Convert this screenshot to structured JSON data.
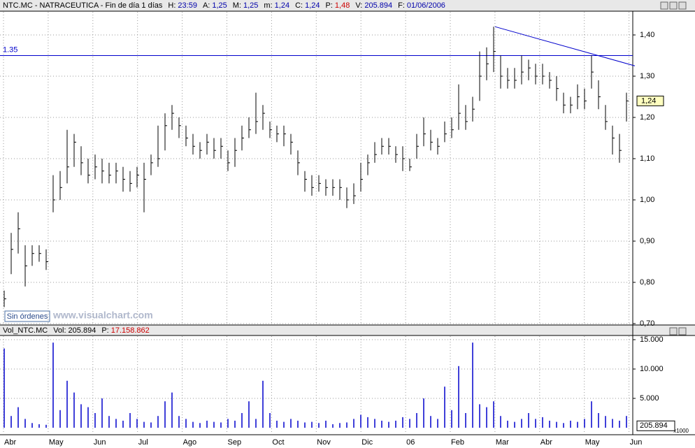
{
  "header": {
    "symbol": "NTC.MC - NATRACEUTICA - Fin de día 1 días",
    "items": [
      {
        "label": "H:",
        "value": "23:59"
      },
      {
        "label": "A:",
        "value": "1,25"
      },
      {
        "label": "M:",
        "value": "1,25"
      },
      {
        "label": "m:",
        "value": "1,24"
      },
      {
        "label": "C:",
        "value": "1,24"
      },
      {
        "label": "P:",
        "value": "1,48"
      },
      {
        "label": "V:",
        "value": "205.894"
      },
      {
        "label": "F:",
        "value": "01/06/2006"
      }
    ]
  },
  "volume_header": {
    "name": "Vol_NTC.MC",
    "items": [
      {
        "label": "Vol:",
        "value": "205.894"
      },
      {
        "label": "P:",
        "value": "17.158.862"
      }
    ]
  },
  "button": "Sin órdenes",
  "watermark": "www.visualchart.com",
  "volume_multiplier": "x1000",
  "chart_data": [
    {
      "type": "ohlc",
      "title": "NTC.MC",
      "ylim": [
        0.7,
        1.45
      ],
      "yticks": [
        {
          "value": 0.7,
          "label": "0,70"
        },
        {
          "value": 0.8,
          "label": "0,80"
        },
        {
          "value": 0.9,
          "label": "0,90"
        },
        {
          "value": 1.0,
          "label": "1,00"
        },
        {
          "value": 1.1,
          "label": "1,10"
        },
        {
          "value": 1.2,
          "label": "1,20"
        },
        {
          "value": 1.3,
          "label": "1,30"
        },
        {
          "value": 1.4,
          "label": "1,40"
        }
      ],
      "grid": true,
      "color": "#000000",
      "months": [
        "Abr",
        "May",
        "Jun",
        "Jul",
        "Ago",
        "Sep",
        "Oct",
        "Nov",
        "Dic",
        "06",
        "Feb",
        "Mar",
        "Abr",
        "May",
        "Jun"
      ],
      "highs": [
        0.78,
        0.92,
        0.97,
        0.89,
        0.89,
        0.89,
        0.88,
        1.06,
        1.07,
        1.17,
        1.16,
        1.13,
        1.1,
        1.11,
        1.1,
        1.09,
        1.09,
        1.08,
        1.07,
        1.08,
        1.09,
        1.11,
        1.18,
        1.21,
        1.23,
        1.2,
        1.18,
        1.16,
        1.14,
        1.16,
        1.15,
        1.15,
        1.12,
        1.15,
        1.18,
        1.2,
        1.26,
        1.23,
        1.19,
        1.18,
        1.18,
        1.16,
        1.12,
        1.07,
        1.06,
        1.06,
        1.05,
        1.05,
        1.05,
        1.03,
        1.04,
        1.09,
        1.11,
        1.14,
        1.15,
        1.15,
        1.13,
        1.13,
        1.1,
        1.16,
        1.2,
        1.17,
        1.15,
        1.19,
        1.2,
        1.28,
        1.23,
        1.25,
        1.36,
        1.37,
        1.42,
        1.35,
        1.32,
        1.32,
        1.35,
        1.34,
        1.33,
        1.33,
        1.31,
        1.3,
        1.26,
        1.25,
        1.28,
        1.27,
        1.35,
        1.29,
        1.23,
        1.18,
        1.16,
        1.26
      ],
      "lows": [
        0.74,
        0.82,
        0.87,
        0.79,
        0.84,
        0.85,
        0.83,
        0.97,
        1.0,
        1.04,
        1.08,
        1.06,
        1.04,
        1.05,
        1.04,
        1.04,
        1.04,
        1.02,
        1.02,
        1.03,
        0.97,
        1.06,
        1.08,
        1.12,
        1.17,
        1.15,
        1.13,
        1.11,
        1.1,
        1.11,
        1.1,
        1.1,
        1.07,
        1.08,
        1.12,
        1.15,
        1.16,
        1.17,
        1.15,
        1.14,
        1.13,
        1.11,
        1.06,
        1.02,
        1.01,
        1.02,
        1.01,
        1.01,
        1.0,
        0.98,
        0.99,
        1.02,
        1.06,
        1.09,
        1.11,
        1.11,
        1.09,
        1.07,
        1.07,
        1.1,
        1.13,
        1.12,
        1.11,
        1.14,
        1.15,
        1.17,
        1.17,
        1.19,
        1.24,
        1.29,
        1.31,
        1.27,
        1.27,
        1.27,
        1.28,
        1.29,
        1.28,
        1.28,
        1.27,
        1.24,
        1.21,
        1.21,
        1.22,
        1.22,
        1.27,
        1.22,
        1.17,
        1.11,
        1.09,
        1.19
      ],
      "closes": [
        0.76,
        0.88,
        0.93,
        0.84,
        0.87,
        0.87,
        0.85,
        1.0,
        1.03,
        1.08,
        1.14,
        1.09,
        1.06,
        1.08,
        1.07,
        1.06,
        1.07,
        1.05,
        1.04,
        1.06,
        1.05,
        1.09,
        1.1,
        1.18,
        1.21,
        1.18,
        1.15,
        1.13,
        1.12,
        1.14,
        1.12,
        1.13,
        1.09,
        1.12,
        1.15,
        1.17,
        1.19,
        1.21,
        1.17,
        1.16,
        1.16,
        1.14,
        1.09,
        1.05,
        1.03,
        1.04,
        1.03,
        1.03,
        1.03,
        1.0,
        1.01,
        1.05,
        1.09,
        1.11,
        1.13,
        1.13,
        1.11,
        1.1,
        1.08,
        1.13,
        1.16,
        1.14,
        1.13,
        1.16,
        1.17,
        1.21,
        1.19,
        1.22,
        1.3,
        1.33,
        1.36,
        1.3,
        1.29,
        1.29,
        1.31,
        1.32,
        1.3,
        1.3,
        1.29,
        1.27,
        1.23,
        1.23,
        1.25,
        1.24,
        1.31,
        1.25,
        1.19,
        1.15,
        1.12,
        1.24
      ],
      "hline": {
        "value": 1.35,
        "label": "1.35",
        "color": "#0000cc"
      },
      "trendline": {
        "x": [
          70,
          90
        ],
        "values": [
          1.42,
          1.325
        ],
        "color": "#0000cc"
      },
      "last_price": {
        "value": 1.24,
        "label": "1,24"
      }
    },
    {
      "type": "volume",
      "ylim": [
        0,
        16000
      ],
      "yticks": [
        {
          "value": 5000,
          "label": "5.000"
        },
        {
          "value": 10000,
          "label": "10.000"
        },
        {
          "value": 15000,
          "label": "15.000"
        }
      ],
      "grid": true,
      "color": "#0000cc",
      "values": [
        13500,
        2000,
        3500,
        1500,
        800,
        600,
        500,
        14500,
        3000,
        8000,
        6000,
        4000,
        3500,
        2500,
        5000,
        2000,
        1500,
        1200,
        2500,
        1500,
        1000,
        900,
        2000,
        4500,
        6000,
        2000,
        1500,
        1000,
        800,
        1200,
        1000,
        900,
        1500,
        1200,
        2500,
        4500,
        1500,
        8000,
        2500,
        1200,
        1000,
        1500,
        1200,
        900,
        1000,
        800,
        1200,
        600,
        800,
        900,
        1500,
        2200,
        1800,
        1500,
        1200,
        1000,
        1200,
        1800,
        1500,
        2500,
        5000,
        2000,
        1500,
        7000,
        3000,
        10500,
        2500,
        14500,
        4000,
        3500,
        4500,
        2000,
        1200,
        1000,
        1500,
        2500,
        1500,
        1800,
        1200,
        1000,
        800,
        1200,
        1000,
        1500,
        4500,
        2500,
        2000,
        1500,
        1200,
        2000
      ],
      "last": {
        "value": 205.894,
        "label": "205.894"
      }
    }
  ]
}
